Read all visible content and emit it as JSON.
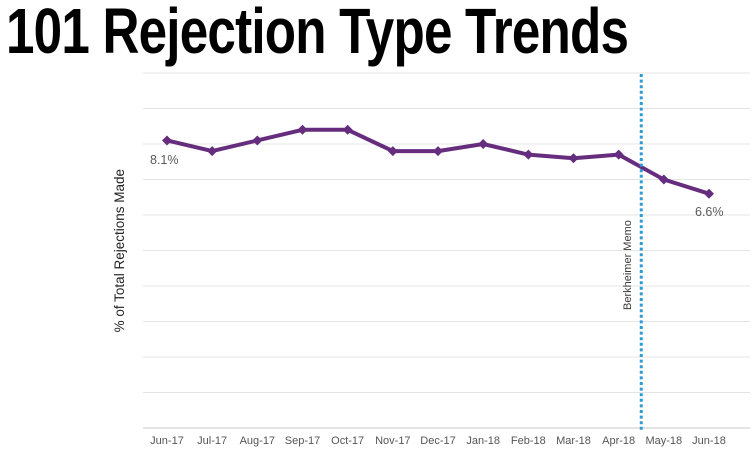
{
  "page": {
    "title": "101 Rejection Type Trends"
  },
  "chart_data": {
    "type": "line",
    "title": "101 Rejection Type Trends",
    "xlabel": "",
    "ylabel": "% of Total Rejections Made",
    "categories": [
      "Jun-17",
      "Jul-17",
      "Aug-17",
      "Sep-17",
      "Oct-17",
      "Nov-17",
      "Dec-17",
      "Jan-18",
      "Feb-18",
      "Mar-18",
      "Apr-18",
      "May-18",
      "Jun-18"
    ],
    "values": [
      8.1,
      7.8,
      8.1,
      8.4,
      8.4,
      7.8,
      7.8,
      8.0,
      7.7,
      7.6,
      7.7,
      7.0,
      6.6
    ],
    "ylim": [
      0,
      10
    ],
    "grid_step": 1,
    "grid": "horizontal",
    "legend": "none",
    "point_labels": {
      "first": "8.1%",
      "last": "6.6%"
    },
    "reference_line": {
      "label": "Berkheimer Memo",
      "between": [
        "Apr-18",
        "May-18"
      ],
      "style": "dotted"
    },
    "colors": {
      "line": "#662D7E",
      "marker": "#662D7E",
      "reference": "#2D9BD8",
      "grid": "#E4E4E4",
      "axis": "#C9C9C9",
      "data_label_text": "#595959",
      "tick_text": "#555555",
      "title_text": "#000000",
      "memo_text": "#3A3A3A"
    }
  }
}
